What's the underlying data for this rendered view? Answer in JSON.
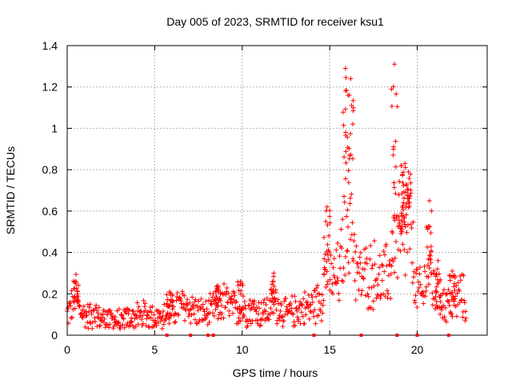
{
  "chart_data": {
    "type": "scatter",
    "title": "Day 005 of 2023, SRMTID for receiver ksu1",
    "xlabel": "GPS time / hours",
    "ylabel": "SRMTID / TECUs",
    "xlim": [
      0,
      24
    ],
    "ylim": [
      0,
      1.4
    ],
    "x_ticks": [
      0,
      5,
      10,
      15,
      20
    ],
    "x_tick_labels": [
      "0",
      "5",
      "10",
      "15",
      "20"
    ],
    "y_ticks": [
      0,
      0.2,
      0.4,
      0.6,
      0.8,
      1.0,
      1.2,
      1.4
    ],
    "y_tick_labels": [
      "0",
      "0.2",
      "0.4",
      "0.6",
      "0.8",
      "1",
      "1.2",
      "1.4"
    ],
    "grid": true,
    "marker": "+",
    "color": "#ff0000",
    "series": [
      {
        "name": "SRMTID",
        "profile_x": [
          0.0,
          0.3,
          0.5,
          0.7,
          1.0,
          1.5,
          2.0,
          2.5,
          3.0,
          3.5,
          4.0,
          4.5,
          5.0,
          5.5,
          5.8,
          6.3,
          7.0,
          7.5,
          8.0,
          8.5,
          9.0,
          9.5,
          10.0,
          10.5,
          11.0,
          11.5,
          11.8,
          12.5,
          13.0,
          13.5,
          14.0,
          14.5,
          14.8,
          15.2,
          15.6,
          15.9,
          16.2,
          16.6,
          17.0,
          17.5,
          18.0,
          18.5,
          18.7,
          19.0,
          19.3,
          19.6,
          19.9,
          20.3,
          20.6,
          21.0,
          21.5,
          22.0,
          22.5,
          22.8
        ],
        "profile_y": [
          0.1,
          0.15,
          0.2,
          0.12,
          0.1,
          0.09,
          0.08,
          0.08,
          0.07,
          0.08,
          0.09,
          0.1,
          0.09,
          0.09,
          0.1,
          0.14,
          0.14,
          0.11,
          0.1,
          0.14,
          0.16,
          0.13,
          0.12,
          0.13,
          0.11,
          0.12,
          0.16,
          0.1,
          0.12,
          0.13,
          0.14,
          0.18,
          0.32,
          0.26,
          0.3,
          0.55,
          0.6,
          0.28,
          0.28,
          0.3,
          0.25,
          0.32,
          0.55,
          0.4,
          0.48,
          0.52,
          0.24,
          0.18,
          0.35,
          0.2,
          0.16,
          0.15,
          0.2,
          0.15
        ],
        "peaks": [
          {
            "x": 0.5,
            "y": 0.26
          },
          {
            "x": 5.85,
            "y": 0.21
          },
          {
            "x": 8.6,
            "y": 0.24
          },
          {
            "x": 9.9,
            "y": 0.26
          },
          {
            "x": 11.8,
            "y": 0.3
          },
          {
            "x": 14.85,
            "y": 0.62
          },
          {
            "x": 15.9,
            "y": 1.29
          },
          {
            "x": 16.2,
            "y": 1.24
          },
          {
            "x": 18.7,
            "y": 1.31
          },
          {
            "x": 19.1,
            "y": 0.82
          },
          {
            "x": 19.3,
            "y": 0.83
          },
          {
            "x": 19.5,
            "y": 0.79
          },
          {
            "x": 20.7,
            "y": 0.65
          },
          {
            "x": 21.2,
            "y": 0.36
          },
          {
            "x": 22.0,
            "y": 0.31
          }
        ]
      }
    ],
    "axis_markers_x": [
      5.7,
      7.05,
      8.05,
      8.35,
      14.1,
      16.8,
      18.85,
      20.0,
      21.8
    ]
  }
}
